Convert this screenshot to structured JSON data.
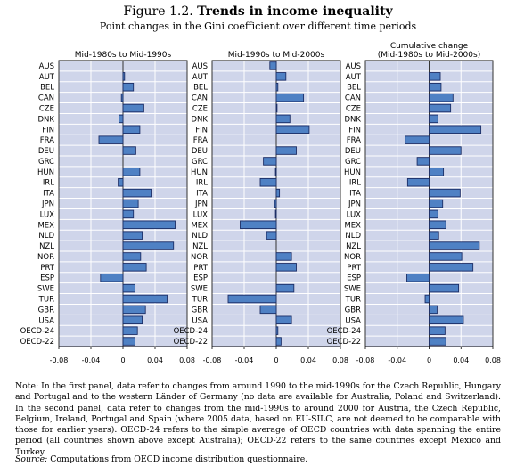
{
  "figure": {
    "number": "Figure 1.2.",
    "title": "Trends in income inequality",
    "subtitle": "Point changes in the Gini coefficient over different time periods"
  },
  "chart_data": [
    {
      "type": "bar",
      "orientation": "horizontal",
      "title": "Mid-1980s to Mid-1990s",
      "categories": [
        "AUS",
        "AUT",
        "BEL",
        "CAN",
        "CZE",
        "DNK",
        "FIN",
        "FRA",
        "DEU",
        "GRC",
        "HUN",
        "IRL",
        "ITA",
        "JPN",
        "LUX",
        "MEX",
        "NLD",
        "NZL",
        "NOR",
        "PRT",
        "ESP",
        "SWE",
        "TUR",
        "GBR",
        "USA",
        "OECD-24",
        "OECD-22"
      ],
      "values": [
        0.0,
        0.002,
        0.013,
        -0.002,
        0.026,
        -0.005,
        0.021,
        -0.03,
        0.016,
        0.0,
        0.021,
        -0.006,
        0.035,
        0.019,
        0.013,
        0.065,
        0.024,
        0.063,
        0.022,
        0.029,
        -0.028,
        0.015,
        0.055,
        0.028,
        0.024,
        0.018,
        0.015
      ],
      "xlim": [
        -0.08,
        0.08
      ],
      "xticks": [
        "-0.08",
        "-0.04",
        "0",
        "0.04",
        "0.08"
      ],
      "grid": true
    },
    {
      "type": "bar",
      "orientation": "horizontal",
      "title": "Mid-1990s to Mid-2000s",
      "categories": [
        "AUS",
        "AUT",
        "BEL",
        "CAN",
        "CZE",
        "DNK",
        "FIN",
        "FRA",
        "DEU",
        "GRC",
        "HUN",
        "IRL",
        "ITA",
        "JPN",
        "LUX",
        "MEX",
        "NLD",
        "NZL",
        "NOR",
        "PRT",
        "ESP",
        "SWE",
        "TUR",
        "GBR",
        "USA",
        "OECD-24",
        "OECD-22"
      ],
      "values": [
        -0.008,
        0.012,
        0.002,
        0.034,
        0.001,
        0.017,
        0.041,
        null,
        0.025,
        -0.016,
        -0.001,
        -0.02,
        0.004,
        -0.002,
        -0.001,
        -0.045,
        -0.012,
        null,
        0.019,
        0.025,
        null,
        0.022,
        -0.06,
        -0.02,
        0.019,
        0.002,
        0.006
      ],
      "xlim": [
        -0.08,
        0.08
      ],
      "xticks": [
        "-0.08",
        "-0.04",
        "0",
        "0.04",
        "0.08"
      ],
      "grid": true
    },
    {
      "type": "bar",
      "orientation": "horizontal",
      "title": "Cumulative change\n(Mid-1980s to Mid-2000s)",
      "categories": [
        "AUS",
        "AUT",
        "BEL",
        "CAN",
        "CZE",
        "DNK",
        "FIN",
        "FRA",
        "DEU",
        "GRC",
        "HUN",
        "IRL",
        "ITA",
        "JPN",
        "LUX",
        "MEX",
        "NLD",
        "NZL",
        "NOR",
        "PRT",
        "ESP",
        "SWE",
        "TUR",
        "GBR",
        "USA",
        "OECD-24",
        "OECD-22"
      ],
      "values": [
        null,
        0.014,
        0.015,
        0.03,
        0.027,
        0.011,
        0.065,
        -0.03,
        0.04,
        -0.015,
        0.018,
        -0.027,
        0.039,
        0.017,
        0.011,
        0.021,
        0.012,
        0.063,
        0.041,
        0.055,
        -0.028,
        0.037,
        -0.005,
        0.01,
        0.043,
        0.02,
        0.021
      ],
      "xlim": [
        -0.08,
        0.08
      ],
      "xticks": [
        "-0.08",
        "-0.04",
        "0",
        "0.04",
        "0.08"
      ],
      "grid": true
    }
  ],
  "colors": {
    "plot_background": "#cfd5ea",
    "gridline": "#ffffff",
    "bar_fill": "#4f81c4",
    "bar_stroke": "#1c2e66"
  },
  "note": {
    "label": "Note:",
    "text": "In the first panel, data refer to changes from around 1990 to the mid-1990s for the Czech Republic, Hungary and Portugal and to the western Länder of Germany (no data are available for Australia, Poland and Switzerland). In the second panel, data refer to changes from the mid-1990s to around 2000 for Austria, the Czech Republic, Belgium, Ireland, Portugal and Spain (where 2005 data, based on EU-SILC, are not deemed to be comparable with those for earlier years). OECD-24 refers to the simple average of OECD countries with data spanning the entire period (all countries shown above except Australia); OECD-22 refers to the same countries except Mexico and Turkey."
  },
  "source": {
    "label": "Source:",
    "text": "Computations from OECD income distribution questionnaire."
  }
}
